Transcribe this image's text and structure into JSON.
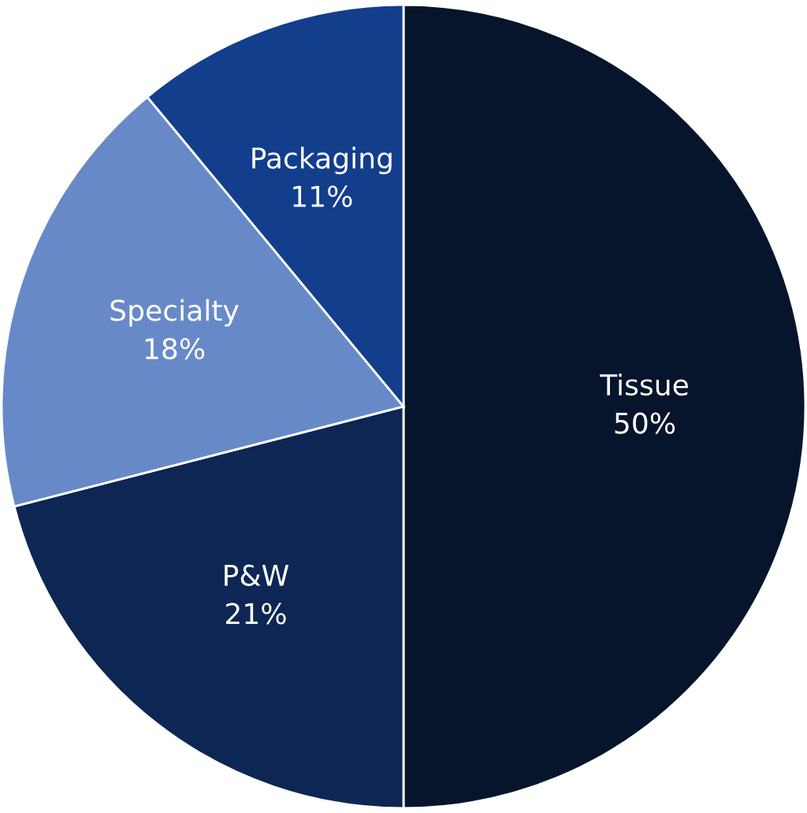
{
  "chart_data": {
    "type": "pie",
    "categories": [
      "Tissue",
      "P&W",
      "Specialty",
      "Packaging"
    ],
    "values": [
      50,
      21,
      18,
      11
    ],
    "value_labels": [
      "50%",
      "21%",
      "18%",
      "11%"
    ],
    "colors": [
      "#06152b",
      "#0e2654",
      "#6889c8",
      "#123e8c"
    ]
  }
}
